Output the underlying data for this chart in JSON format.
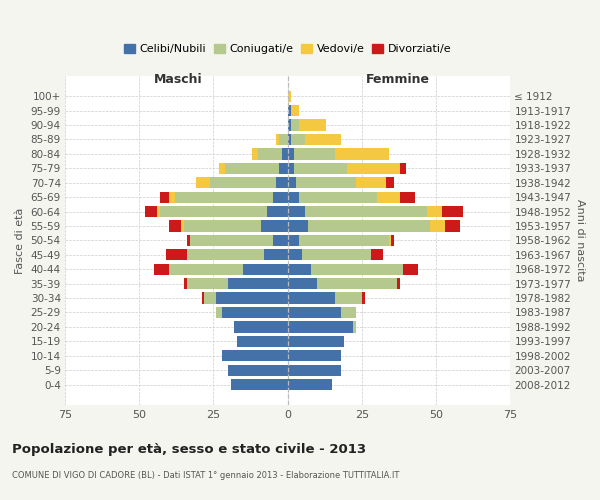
{
  "age_groups": [
    "0-4",
    "5-9",
    "10-14",
    "15-19",
    "20-24",
    "25-29",
    "30-34",
    "35-39",
    "40-44",
    "45-49",
    "50-54",
    "55-59",
    "60-64",
    "65-69",
    "70-74",
    "75-79",
    "80-84",
    "85-89",
    "90-94",
    "95-99",
    "100+"
  ],
  "birth_years": [
    "2008-2012",
    "2003-2007",
    "1998-2002",
    "1993-1997",
    "1988-1992",
    "1983-1987",
    "1978-1982",
    "1973-1977",
    "1968-1972",
    "1963-1967",
    "1958-1962",
    "1953-1957",
    "1948-1952",
    "1943-1947",
    "1938-1942",
    "1933-1937",
    "1928-1932",
    "1923-1927",
    "1918-1922",
    "1913-1917",
    "≤ 1912"
  ],
  "colors": {
    "celibi": "#4472a8",
    "coniugati": "#b5c98e",
    "vedovi": "#f5c842",
    "divorziati": "#cc1a1a"
  },
  "maschi": {
    "celibi": [
      19,
      20,
      22,
      17,
      18,
      22,
      24,
      20,
      15,
      8,
      5,
      9,
      7,
      5,
      4,
      3,
      2,
      0,
      0,
      0,
      0
    ],
    "coniugati": [
      0,
      0,
      0,
      0,
      0,
      2,
      4,
      14,
      25,
      26,
      28,
      26,
      36,
      33,
      22,
      18,
      8,
      3,
      0,
      0,
      0
    ],
    "vedovi": [
      0,
      0,
      0,
      0,
      0,
      0,
      0,
      0,
      0,
      0,
      0,
      1,
      1,
      2,
      5,
      2,
      2,
      1,
      0,
      0,
      0
    ],
    "divorziati": [
      0,
      0,
      0,
      0,
      0,
      0,
      1,
      1,
      5,
      7,
      1,
      4,
      4,
      3,
      0,
      0,
      0,
      0,
      0,
      0,
      0
    ]
  },
  "femmine": {
    "celibi": [
      15,
      18,
      18,
      19,
      22,
      18,
      16,
      10,
      8,
      5,
      4,
      7,
      6,
      4,
      3,
      2,
      2,
      1,
      1,
      1,
      0
    ],
    "coniugati": [
      0,
      0,
      0,
      0,
      1,
      5,
      9,
      27,
      31,
      23,
      30,
      41,
      41,
      26,
      20,
      18,
      14,
      5,
      3,
      0,
      0
    ],
    "vedovi": [
      0,
      0,
      0,
      0,
      0,
      0,
      0,
      0,
      0,
      0,
      1,
      5,
      5,
      8,
      10,
      18,
      18,
      12,
      9,
      3,
      1
    ],
    "divorziati": [
      0,
      0,
      0,
      0,
      0,
      0,
      1,
      1,
      5,
      4,
      1,
      5,
      7,
      5,
      3,
      2,
      0,
      0,
      0,
      0,
      0
    ]
  },
  "title": "Popolazione per età, sesso e stato civile - 2013",
  "subtitle": "COMUNE DI VIGO DI CADORE (BL) - Dati ISTAT 1° gennaio 2013 - Elaborazione TUTTITALIA.IT",
  "xlabel_left": "Maschi",
  "xlabel_right": "Femmine",
  "ylabel_left": "Fasce di età",
  "ylabel_right": "Anni di nascita",
  "xlim": 75,
  "legend_labels": [
    "Celibi/Nubili",
    "Coniugati/e",
    "Vedovi/e",
    "Divorziati/e"
  ],
  "background_color": "#f5f5f0",
  "bar_height": 0.78
}
